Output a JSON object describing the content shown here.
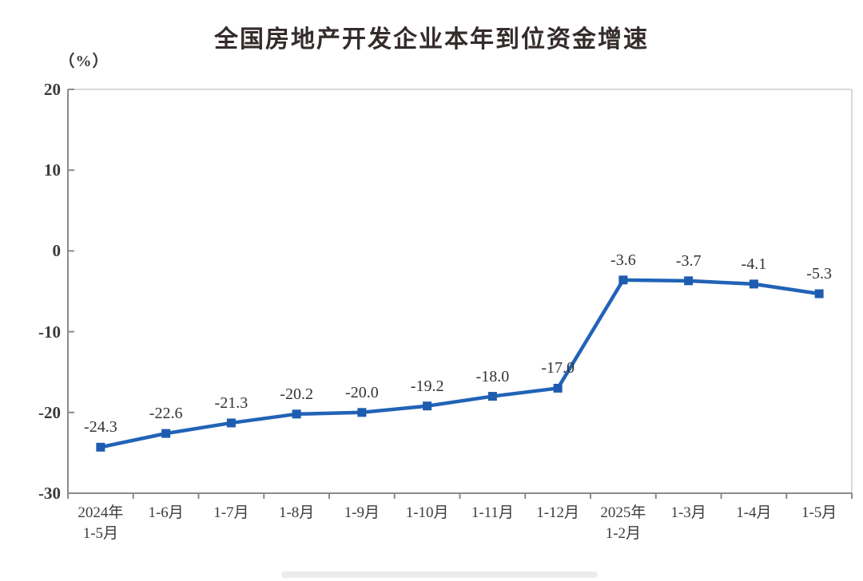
{
  "page": {
    "title": "全国房地产开发企业本年到位资金增速",
    "unit_label": "（%）"
  },
  "chart_data": {
    "type": "line",
    "title": "全国房地产开发企业本年到位资金增速",
    "unit": "（%）",
    "categories": [
      "2024年\n1-5月",
      "1-6月",
      "1-7月",
      "1-8月",
      "1-9月",
      "1-10月",
      "1-11月",
      "1-12月",
      "2025年\n1-2月",
      "1-3月",
      "1-4月",
      "1-5月"
    ],
    "values": [
      -24.3,
      -22.6,
      -21.3,
      -20.2,
      -20.0,
      -19.2,
      -18.0,
      -17.0,
      -3.6,
      -3.7,
      -4.1,
      -5.3
    ],
    "data_labels": [
      "-24.3",
      "-22.6",
      "-21.3",
      "-20.2",
      "-20.0",
      "-19.2",
      "-18.0",
      "-17.0",
      "-3.6",
      "-3.7",
      "-4.1",
      "-5.3"
    ],
    "y_ticks": [
      20,
      10,
      0,
      -10,
      -20,
      -30
    ],
    "ylim": [
      -30,
      20
    ],
    "grid": false,
    "legend": "none",
    "colors": {
      "line": "#2163b6",
      "marker": "#1d5cae",
      "axis": "#8a8a8a",
      "plot_border": "#d9d9d9",
      "tick_label": "#3a3a3a",
      "data_label": "#333333",
      "title": "#342b2b"
    }
  }
}
